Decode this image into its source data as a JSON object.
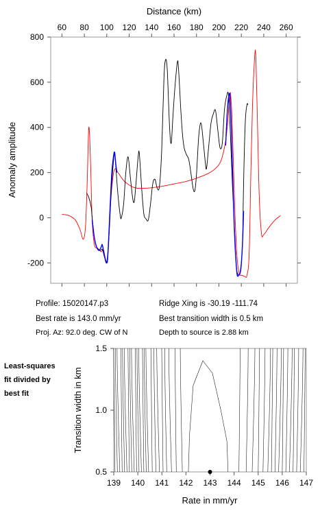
{
  "chart_data": [
    {
      "type": "line",
      "title": "",
      "xlabel_top": "Distance (km)",
      "ylabel": "Anomaly amplitude",
      "xlim": [
        50,
        270
      ],
      "ylim": [
        -290,
        800
      ],
      "x_ticks": [
        60,
        80,
        100,
        120,
        140,
        160,
        180,
        200,
        220,
        240,
        260
      ],
      "y_ticks": [
        -200,
        0,
        200,
        400,
        600,
        800
      ],
      "grid": false,
      "legend": "none",
      "series": [
        {
          "color": "#ff0000",
          "points": [
            [
              60,
              15
            ],
            [
              66,
              10
            ],
            [
              72,
              -10
            ],
            [
              76,
              -50
            ],
            [
              79,
              -95
            ],
            [
              81,
              -40
            ],
            [
              82.5,
              150
            ],
            [
              84,
              400
            ],
            [
              85.5,
              250
            ],
            [
              87,
              -10
            ],
            [
              89,
              -120
            ],
            [
              92,
              -135
            ],
            [
              95,
              -150
            ],
            [
              97,
              -140
            ],
            [
              98.5,
              -175
            ],
            [
              100,
              -200
            ],
            [
              101.5,
              -130
            ],
            [
              103,
              30
            ],
            [
              105,
              160
            ],
            [
              107,
              215
            ],
            [
              110,
              200
            ],
            [
              115,
              165
            ],
            [
              120,
              145
            ],
            [
              125,
              133
            ],
            [
              130,
              130
            ],
            [
              140,
              133
            ],
            [
              150,
              140
            ],
            [
              160,
              150
            ],
            [
              170,
              160
            ],
            [
              180,
              175
            ],
            [
              190,
              195
            ],
            [
              195,
              210
            ],
            [
              200,
              235
            ],
            [
              203,
              270
            ],
            [
              206,
              340
            ],
            [
              208,
              430
            ],
            [
              209.5,
              530
            ],
            [
              210.5,
              545
            ],
            [
              212,
              400
            ],
            [
              214,
              60
            ],
            [
              216,
              -160
            ],
            [
              218,
              -245
            ],
            [
              221,
              -255
            ],
            [
              223,
              -260
            ],
            [
              225,
              -255
            ],
            [
              227,
              -160
            ],
            [
              228.5,
              200
            ],
            [
              230,
              500
            ],
            [
              232,
              720
            ],
            [
              233,
              700
            ],
            [
              234.5,
              400
            ],
            [
              236,
              90
            ],
            [
              238,
              -70
            ],
            [
              240,
              -75
            ],
            [
              245,
              -40
            ],
            [
              250,
              -10
            ],
            [
              255,
              10
            ]
          ]
        },
        {
          "color": "#000000",
          "points": [
            [
              82,
              110
            ],
            [
              84,
              90
            ],
            [
              86,
              50
            ],
            [
              87,
              0
            ],
            [
              89,
              -90
            ],
            [
              91,
              -130
            ],
            [
              94,
              -145
            ],
            [
              96,
              -140
            ],
            [
              98,
              -175
            ],
            [
              100,
              -195
            ],
            [
              102,
              -80
            ],
            [
              104,
              120
            ],
            [
              106,
              250
            ],
            [
              107,
              285
            ],
            [
              108,
              230
            ],
            [
              110,
              100
            ],
            [
              112,
              10
            ],
            [
              113,
              0
            ],
            [
              115,
              60
            ],
            [
              117,
              200
            ],
            [
              119,
              270
            ],
            [
              121,
              180
            ],
            [
              123,
              90
            ],
            [
              124.5,
              70
            ],
            [
              126,
              150
            ],
            [
              128,
              270
            ],
            [
              129,
              285
            ],
            [
              131,
              140
            ],
            [
              133,
              20
            ],
            [
              135,
              -5
            ],
            [
              137,
              -10
            ],
            [
              139,
              60
            ],
            [
              141,
              150
            ],
            [
              143,
              170
            ],
            [
              145,
              130
            ],
            [
              147,
              140
            ],
            [
              149,
              300
            ],
            [
              151,
              620
            ],
            [
              152.5,
              700
            ],
            [
              154,
              650
            ],
            [
              156,
              400
            ],
            [
              157.5,
              330
            ],
            [
              159,
              450
            ],
            [
              161,
              590
            ],
            [
              163,
              690
            ],
            [
              164,
              660
            ],
            [
              166,
              480
            ],
            [
              167.5,
              370
            ],
            [
              169,
              310
            ],
            [
              171,
              280
            ],
            [
              173,
              260
            ],
            [
              175,
              200
            ],
            [
              177,
              130
            ],
            [
              178.5,
              120
            ],
            [
              180,
              190
            ],
            [
              182,
              360
            ],
            [
              184,
              420
            ],
            [
              186,
              340
            ],
            [
              188,
              240
            ],
            [
              189,
              220
            ],
            [
              191,
              320
            ],
            [
              193,
              420
            ],
            [
              195,
              460
            ],
            [
              197,
              475
            ],
            [
              199,
              390
            ],
            [
              201,
              310
            ],
            [
              203,
              330
            ],
            [
              205,
              480
            ],
            [
              207,
              540
            ],
            [
              208.5,
              545
            ],
            [
              210,
              400
            ],
            [
              212,
              150
            ],
            [
              214,
              -60
            ],
            [
              215.5,
              -210
            ],
            [
              217,
              -250
            ],
            [
              219,
              -240
            ],
            [
              221,
              -120
            ],
            [
              222,
              150
            ],
            [
              223.5,
              420
            ],
            [
              225,
              500
            ],
            [
              226,
              500
            ]
          ]
        },
        {
          "color": "#0000ff",
          "points": [
            [
              87,
              -10
            ],
            [
              89,
              -90
            ],
            [
              91,
              -130
            ],
            [
              93,
              -145
            ],
            [
              95,
              -130
            ],
            [
              96,
              -120
            ],
            [
              98,
              -170
            ],
            [
              100,
              -200
            ],
            [
              101,
              -160
            ],
            [
              103,
              50
            ],
            [
              104.5,
              200
            ],
            [
              106,
              270
            ],
            [
              107,
              290
            ],
            [
              108,
              240
            ],
            [
              109,
              200
            ]
          ]
        },
        {
          "color": "#0000ff",
          "points": [
            [
              206,
              320
            ],
            [
              207.5,
              470
            ],
            [
              209,
              545
            ],
            [
              210,
              530
            ],
            [
              211,
              400
            ],
            [
              212.5,
              150
            ],
            [
              214,
              -80
            ],
            [
              216,
              -240
            ],
            [
              217.5,
              -255
            ],
            [
              219.5,
              -230
            ],
            [
              221,
              -120
            ],
            [
              222,
              30
            ]
          ]
        }
      ]
    },
    {
      "type": "contour",
      "xlabel": "Rate in mm/yr",
      "ylabel": "Transition width in km",
      "xlim": [
        139,
        147
      ],
      "ylim": [
        0.5,
        1.5
      ],
      "x_ticks": [
        139,
        140,
        141,
        142,
        143,
        144,
        145,
        146,
        147
      ],
      "y_ticks": [
        0.5,
        1.0,
        1.5
      ],
      "best_fit_point": [
        143.0,
        0.5
      ],
      "contour_positions_left": [
        139.05,
        139.15,
        139.25,
        139.35,
        139.45,
        139.55,
        139.65,
        139.75,
        139.85,
        139.95,
        140.05,
        140.15,
        140.25,
        140.35,
        140.45,
        140.6,
        140.75,
        140.9,
        141.05,
        141.2,
        141.4,
        141.6,
        141.85
      ],
      "contour_positions_right": [
        144.2,
        144.5,
        144.75,
        145.0,
        145.2,
        145.4,
        145.55,
        145.7,
        145.85,
        146.0,
        146.15,
        146.3,
        146.45,
        146.6,
        146.75,
        146.9
      ]
    }
  ],
  "info": {
    "profile": "Profile: 15020147.p3",
    "best_rate": "Best rate is 143.0 mm/yr",
    "proj_az": "Proj. Az: 92.0 deg. CW of N",
    "ridge_xing": "Ridge Xing is -30.19 -111.74",
    "best_transition": "Best transition width is 0.5 km",
    "depth": "Depth to source is   2.88 km"
  },
  "side_note": {
    "line1": "Least-squares",
    "line2": "fit divided by",
    "line3": "best fit"
  }
}
